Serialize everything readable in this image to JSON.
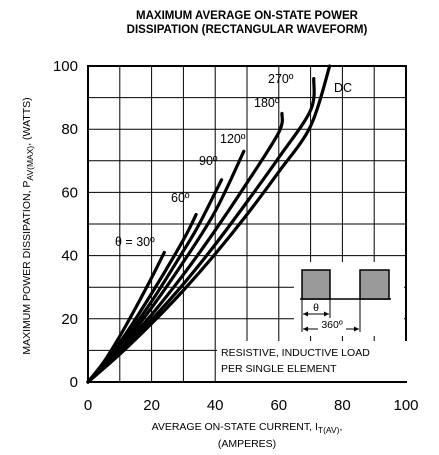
{
  "chart_data": {
    "type": "line",
    "title_line1": "MAXIMUM AVERAGE ON-STATE POWER",
    "title_line2": "DISSIPATION (RECTANGULAR WAVEFORM)",
    "xlabel_line1": "AVERAGE ON-STATE  CURRENT, I",
    "xlabel_sub": "T(AV)",
    "xlabel_suffix": ",",
    "xlabel_line2": "(AMPERES)",
    "ylabel_main": "MAXIMUM POWER DISSIPATION, P",
    "ylabel_sub": "AV(MAX)",
    "ylabel_suffix": ", (WATTS)",
    "xlim": [
      0,
      100
    ],
    "ylim": [
      0,
      100
    ],
    "xticks": [
      "0",
      "20",
      "40",
      "60",
      "80",
      "100"
    ],
    "yticks": [
      "0",
      "20",
      "40",
      "60",
      "80",
      "100"
    ],
    "grid": true,
    "series": [
      {
        "name": "θ = 30º",
        "x": [
          0,
          5,
          10,
          15,
          20,
          24
        ],
        "y": [
          0,
          6.4,
          14.5,
          23.5,
          33,
          41
        ]
      },
      {
        "name": "60º",
        "x": [
          0,
          10,
          20,
          30,
          34
        ],
        "y": [
          0,
          12.5,
          28,
          45,
          53
        ]
      },
      {
        "name": "90º",
        "x": [
          0,
          10,
          20,
          30,
          35,
          42
        ],
        "y": [
          0,
          11.5,
          25.5,
          41.5,
          50,
          64
        ]
      },
      {
        "name": "120º",
        "x": [
          0,
          10,
          20,
          30,
          40,
          49
        ],
        "y": [
          0,
          10.7,
          23.5,
          38,
          54,
          73
        ]
      },
      {
        "name": "180º",
        "x": [
          0,
          10,
          20,
          30,
          40,
          50,
          60,
          61
        ],
        "y": [
          0,
          10,
          21.3,
          34,
          48,
          63,
          79,
          85
        ]
      },
      {
        "name": "270º",
        "x": [
          0,
          10,
          20,
          30,
          40,
          50,
          60,
          70,
          71
        ],
        "y": [
          0,
          9.3,
          19.7,
          31,
          43.5,
          57,
          71,
          86,
          96
        ]
      },
      {
        "name": "DC",
        "x": [
          0,
          10,
          20,
          30,
          40,
          50,
          60,
          70,
          76
        ],
        "y": [
          0,
          8.8,
          18.5,
          29,
          40.5,
          53,
          66.5,
          81,
          100
        ]
      }
    ],
    "note_line1": "RESISTIVE, INDUCTIVE LOAD",
    "note_line2": "PER SINGLE ELEMENT",
    "waveform_theta": "θ",
    "waveform_period": "360º"
  }
}
